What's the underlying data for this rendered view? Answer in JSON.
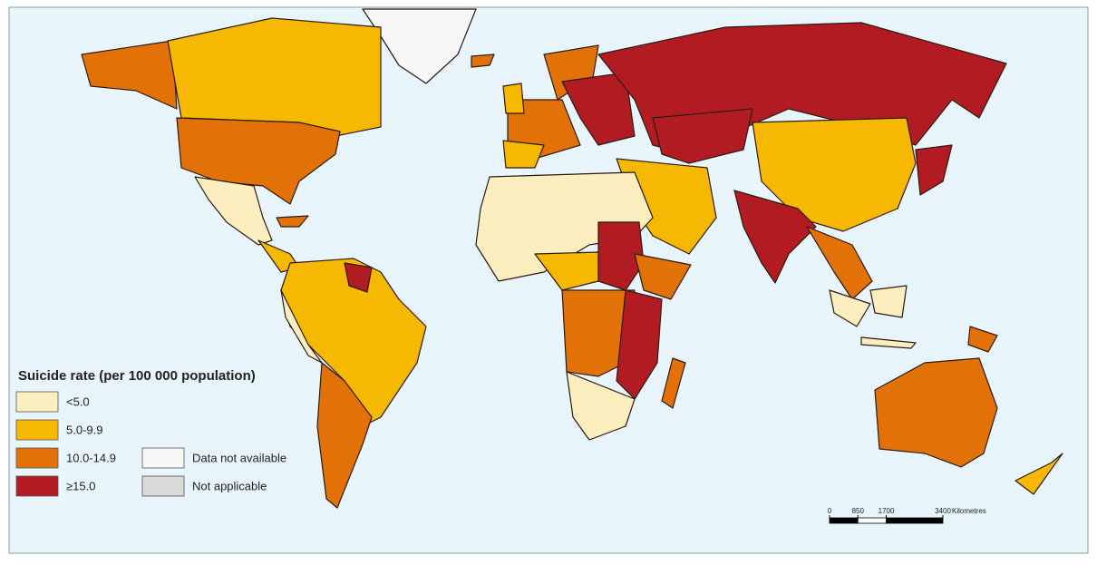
{
  "legend": {
    "title": "Suicide rate (per 100 000 population)",
    "items": [
      {
        "label": "<5.0",
        "color": "#fdeebf"
      },
      {
        "label": "5.0-9.9",
        "color": "#f6b800"
      },
      {
        "label": "10.0-14.9",
        "color": "#e27207"
      },
      {
        "label": "≥15.0",
        "color": "#b31b23"
      },
      {
        "label": "Data not available",
        "color": "#f7f7f7"
      },
      {
        "label": "Not applicable",
        "color": "#d9d9d9"
      }
    ]
  },
  "scale_bar": {
    "ticks": [
      0,
      850,
      1700,
      3400
    ],
    "unit": "Kilometres"
  }
}
